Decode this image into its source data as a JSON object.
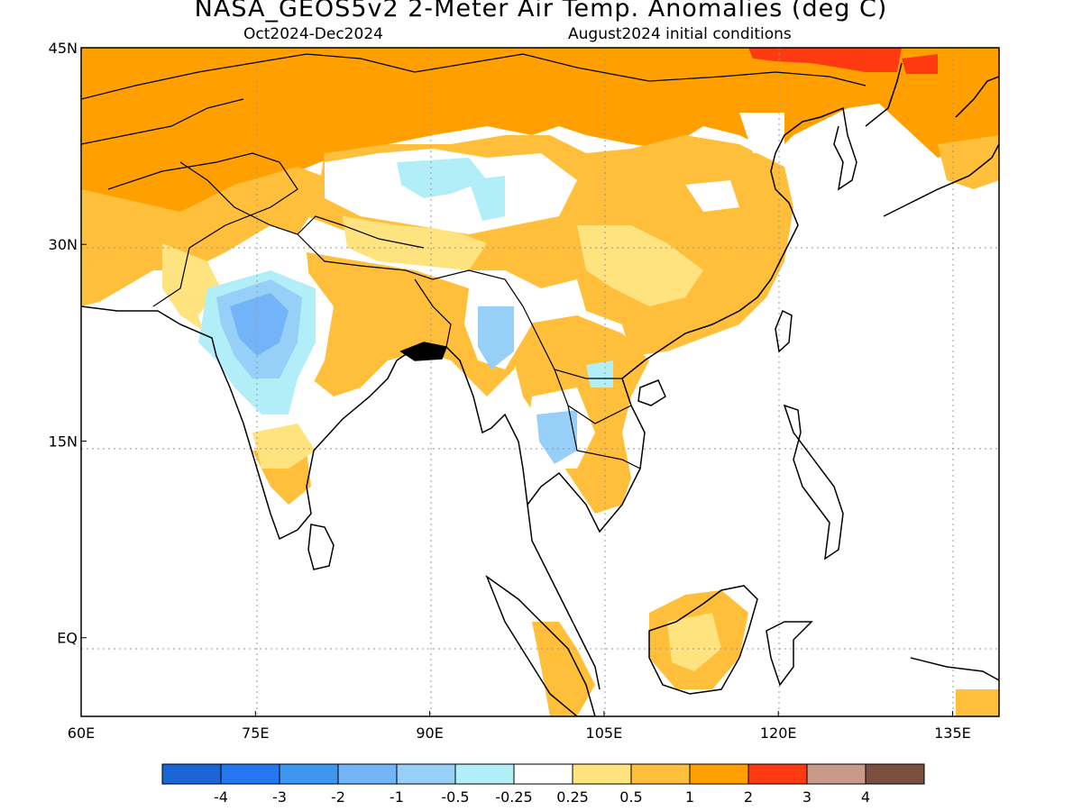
{
  "header": {
    "title": "NASA_GEOS5v2 2-Meter Air Temp. Anomalies (deg C)",
    "period": "Oct2024-Dec2024",
    "init": "August2024 initial conditions"
  },
  "map": {
    "lon_range": [
      60,
      139
    ],
    "lat_range": [
      -6,
      45
    ],
    "lon_ticks": [
      {
        "value": 60,
        "label": "60E"
      },
      {
        "value": 75,
        "label": "75E"
      },
      {
        "value": 90,
        "label": "90E"
      },
      {
        "value": 105,
        "label": "105E"
      },
      {
        "value": 120,
        "label": "120E"
      },
      {
        "value": 135,
        "label": "135E"
      }
    ],
    "lat_ticks": [
      {
        "value": 45,
        "label": "45N"
      },
      {
        "value": 30,
        "label": "30N"
      },
      {
        "value": 15,
        "label": "15N"
      },
      {
        "value": 0,
        "label": "EQ"
      }
    ],
    "grid": true
  },
  "colorbar": {
    "colors": [
      "#1a66d6",
      "#2477ee",
      "#3d97f2",
      "#72b4f7",
      "#96cff8",
      "#b2eef8",
      "#ffffff",
      "#ffe37f",
      "#ffbf3a",
      "#ffa000",
      "#ff3a10",
      "#c89a8c",
      "#7b4f40"
    ],
    "labels": [
      "-4",
      "-3",
      "-2",
      "-1",
      "-0.5",
      "-0.25",
      "0.25",
      "0.5",
      "1",
      "2",
      "3",
      "4"
    ]
  }
}
